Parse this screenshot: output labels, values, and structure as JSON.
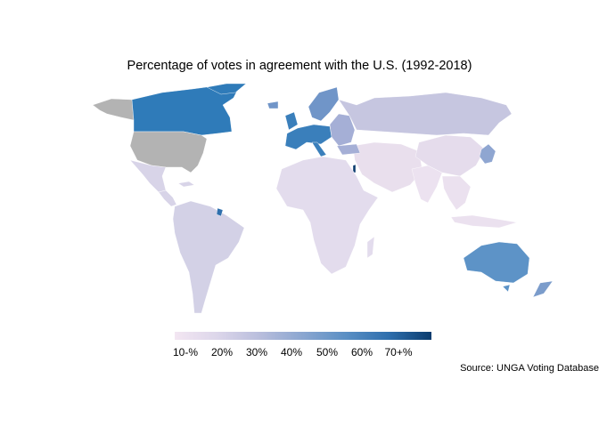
{
  "title": "Percentage of votes in agreement with the U.S. (1992-2018)",
  "source": "Source: UNGA Voting Database",
  "legend": {
    "ticks": [
      "10-%",
      "20%",
      "30%",
      "40%",
      "50%",
      "60%",
      "70+%"
    ],
    "colors": [
      "#f3e6f2",
      "#dcd6ea",
      "#b8bddc",
      "#8aa6d0",
      "#5a8fc4",
      "#2f6fad",
      "#0b3c6e"
    ]
  },
  "colors": {
    "na_gray": "#b3b3b3",
    "canada": "#2f7bb9",
    "western_europe": "#3a7fbb",
    "central_europe": "#7095c8",
    "eastern_europe": "#a5afd6",
    "russia": "#c6c6e0",
    "asia": "#ebe1ef",
    "china": "#e5dcec",
    "india": "#ece2f0",
    "middle_east": "#e9dfed",
    "africa": "#e3dced",
    "south_america": "#d3d1e6",
    "central_america": "#d8d4e8",
    "australia": "#5d93c7",
    "new_zealand": "#7b9ccb",
    "japan_korea": "#8fa6d1",
    "israel": "#0b3c6e",
    "french_guiana": "#2f6fad",
    "greenland": "#2f7bb9"
  }
}
